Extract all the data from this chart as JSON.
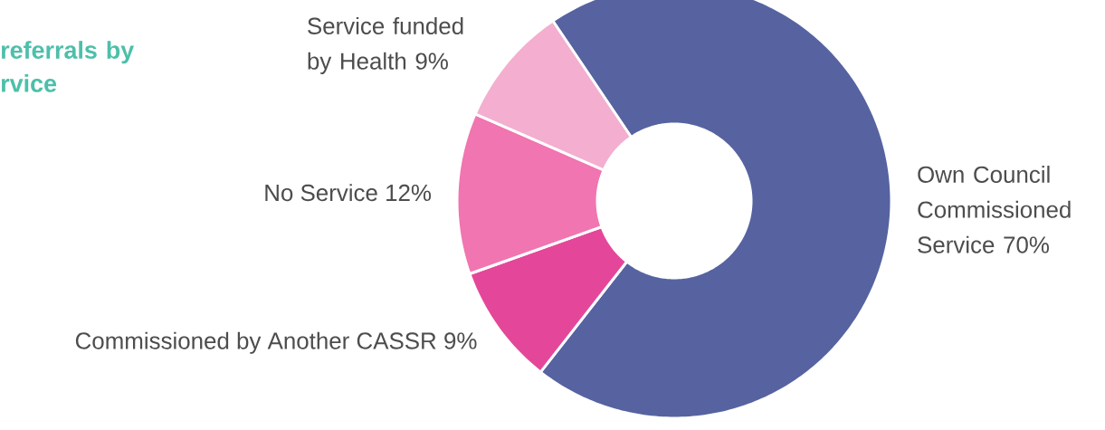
{
  "chart_data": {
    "type": "donut",
    "title": "referrals by rvice",
    "categories": [
      "Own Council Commissioned Service",
      "Commissioned by Another CASSR",
      "No Service",
      "Service funded by Health"
    ],
    "values": [
      70,
      9,
      12,
      9
    ],
    "value_labels": [
      "70%",
      "9%",
      "12%",
      "9%"
    ],
    "colors": [
      "#5663a0",
      "#e4479a",
      "#f075b0",
      "#f3aed0"
    ]
  }
}
